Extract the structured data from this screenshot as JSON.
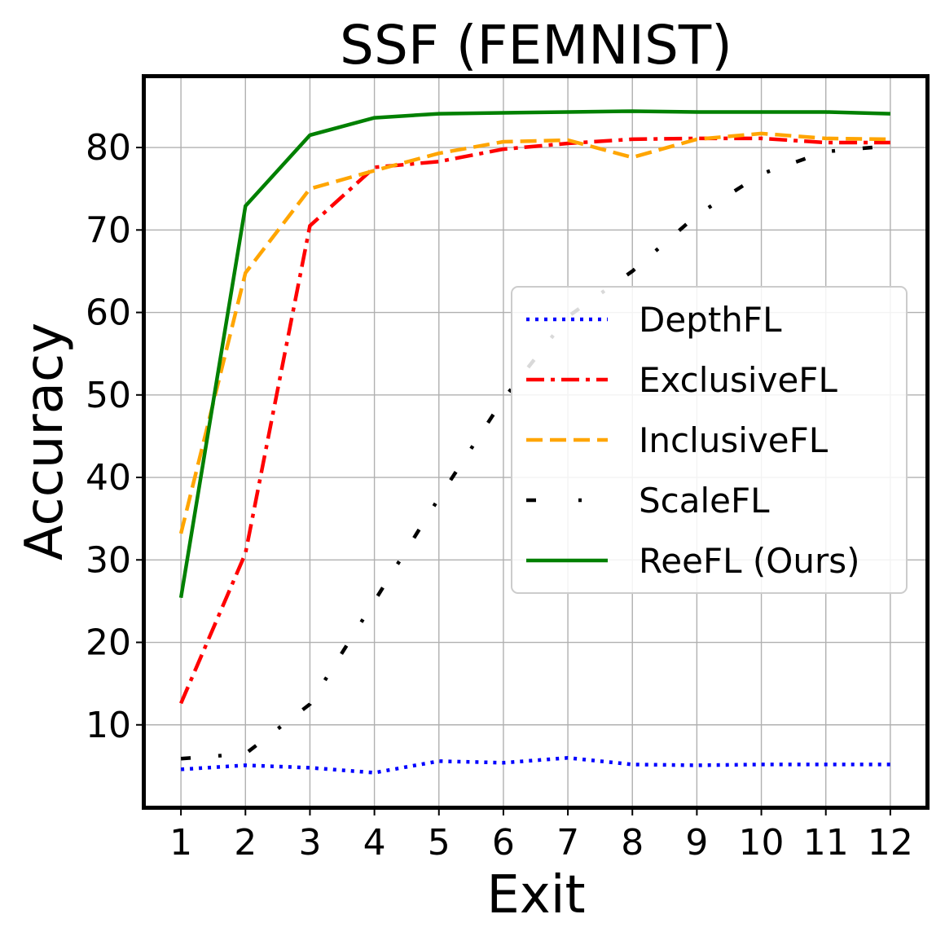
{
  "chart_data": {
    "type": "line",
    "title": "SSF (FEMNIST)",
    "xlabel": "Exit",
    "ylabel": "Accuracy",
    "categories": [
      "1",
      "2",
      "3",
      "4",
      "5",
      "6",
      "7",
      "8",
      "9",
      "10",
      "11",
      "12"
    ],
    "x": [
      1,
      2,
      3,
      4,
      5,
      6,
      7,
      8,
      9,
      10,
      11,
      12
    ],
    "xlim": [
      0.43,
      12.57
    ],
    "ylim": [
      0,
      88.6
    ],
    "yticks": [
      10,
      20,
      30,
      40,
      50,
      60,
      70,
      80
    ],
    "grid": true,
    "legend_position": "center-right",
    "series": [
      {
        "name": "DepthFL",
        "color": "#0000ff",
        "style": "dotted",
        "values": [
          4.6,
          5.1,
          4.8,
          4.2,
          5.6,
          5.4,
          6.0,
          5.2,
          5.1,
          5.2,
          5.2,
          5.2
        ]
      },
      {
        "name": "ExclusiveFL",
        "color": "#ff0000",
        "style": "dashdot",
        "values": [
          12.6,
          30.8,
          70.5,
          77.6,
          78.3,
          79.8,
          80.5,
          81.0,
          81.1,
          81.1,
          80.6,
          80.6
        ]
      },
      {
        "name": "InclusiveFL",
        "color": "#ffa500",
        "style": "dashed",
        "values": [
          33.2,
          64.8,
          75.0,
          77.2,
          79.3,
          80.7,
          80.9,
          78.8,
          81.0,
          81.7,
          81.1,
          81.0
        ]
      },
      {
        "name": "ScaleFL",
        "color": "#000000",
        "style": "loosely-dashdot",
        "values": [
          5.9,
          6.5,
          12.5,
          25.0,
          37.5,
          49.5,
          59.5,
          65.0,
          71.8,
          76.8,
          79.5,
          80.2
        ]
      },
      {
        "name": "ReeFL (Ours)",
        "color": "#008000",
        "style": "solid",
        "values": [
          25.4,
          72.9,
          81.5,
          83.6,
          84.1,
          84.2,
          84.3,
          84.4,
          84.3,
          84.3,
          84.3,
          84.1
        ]
      }
    ]
  }
}
